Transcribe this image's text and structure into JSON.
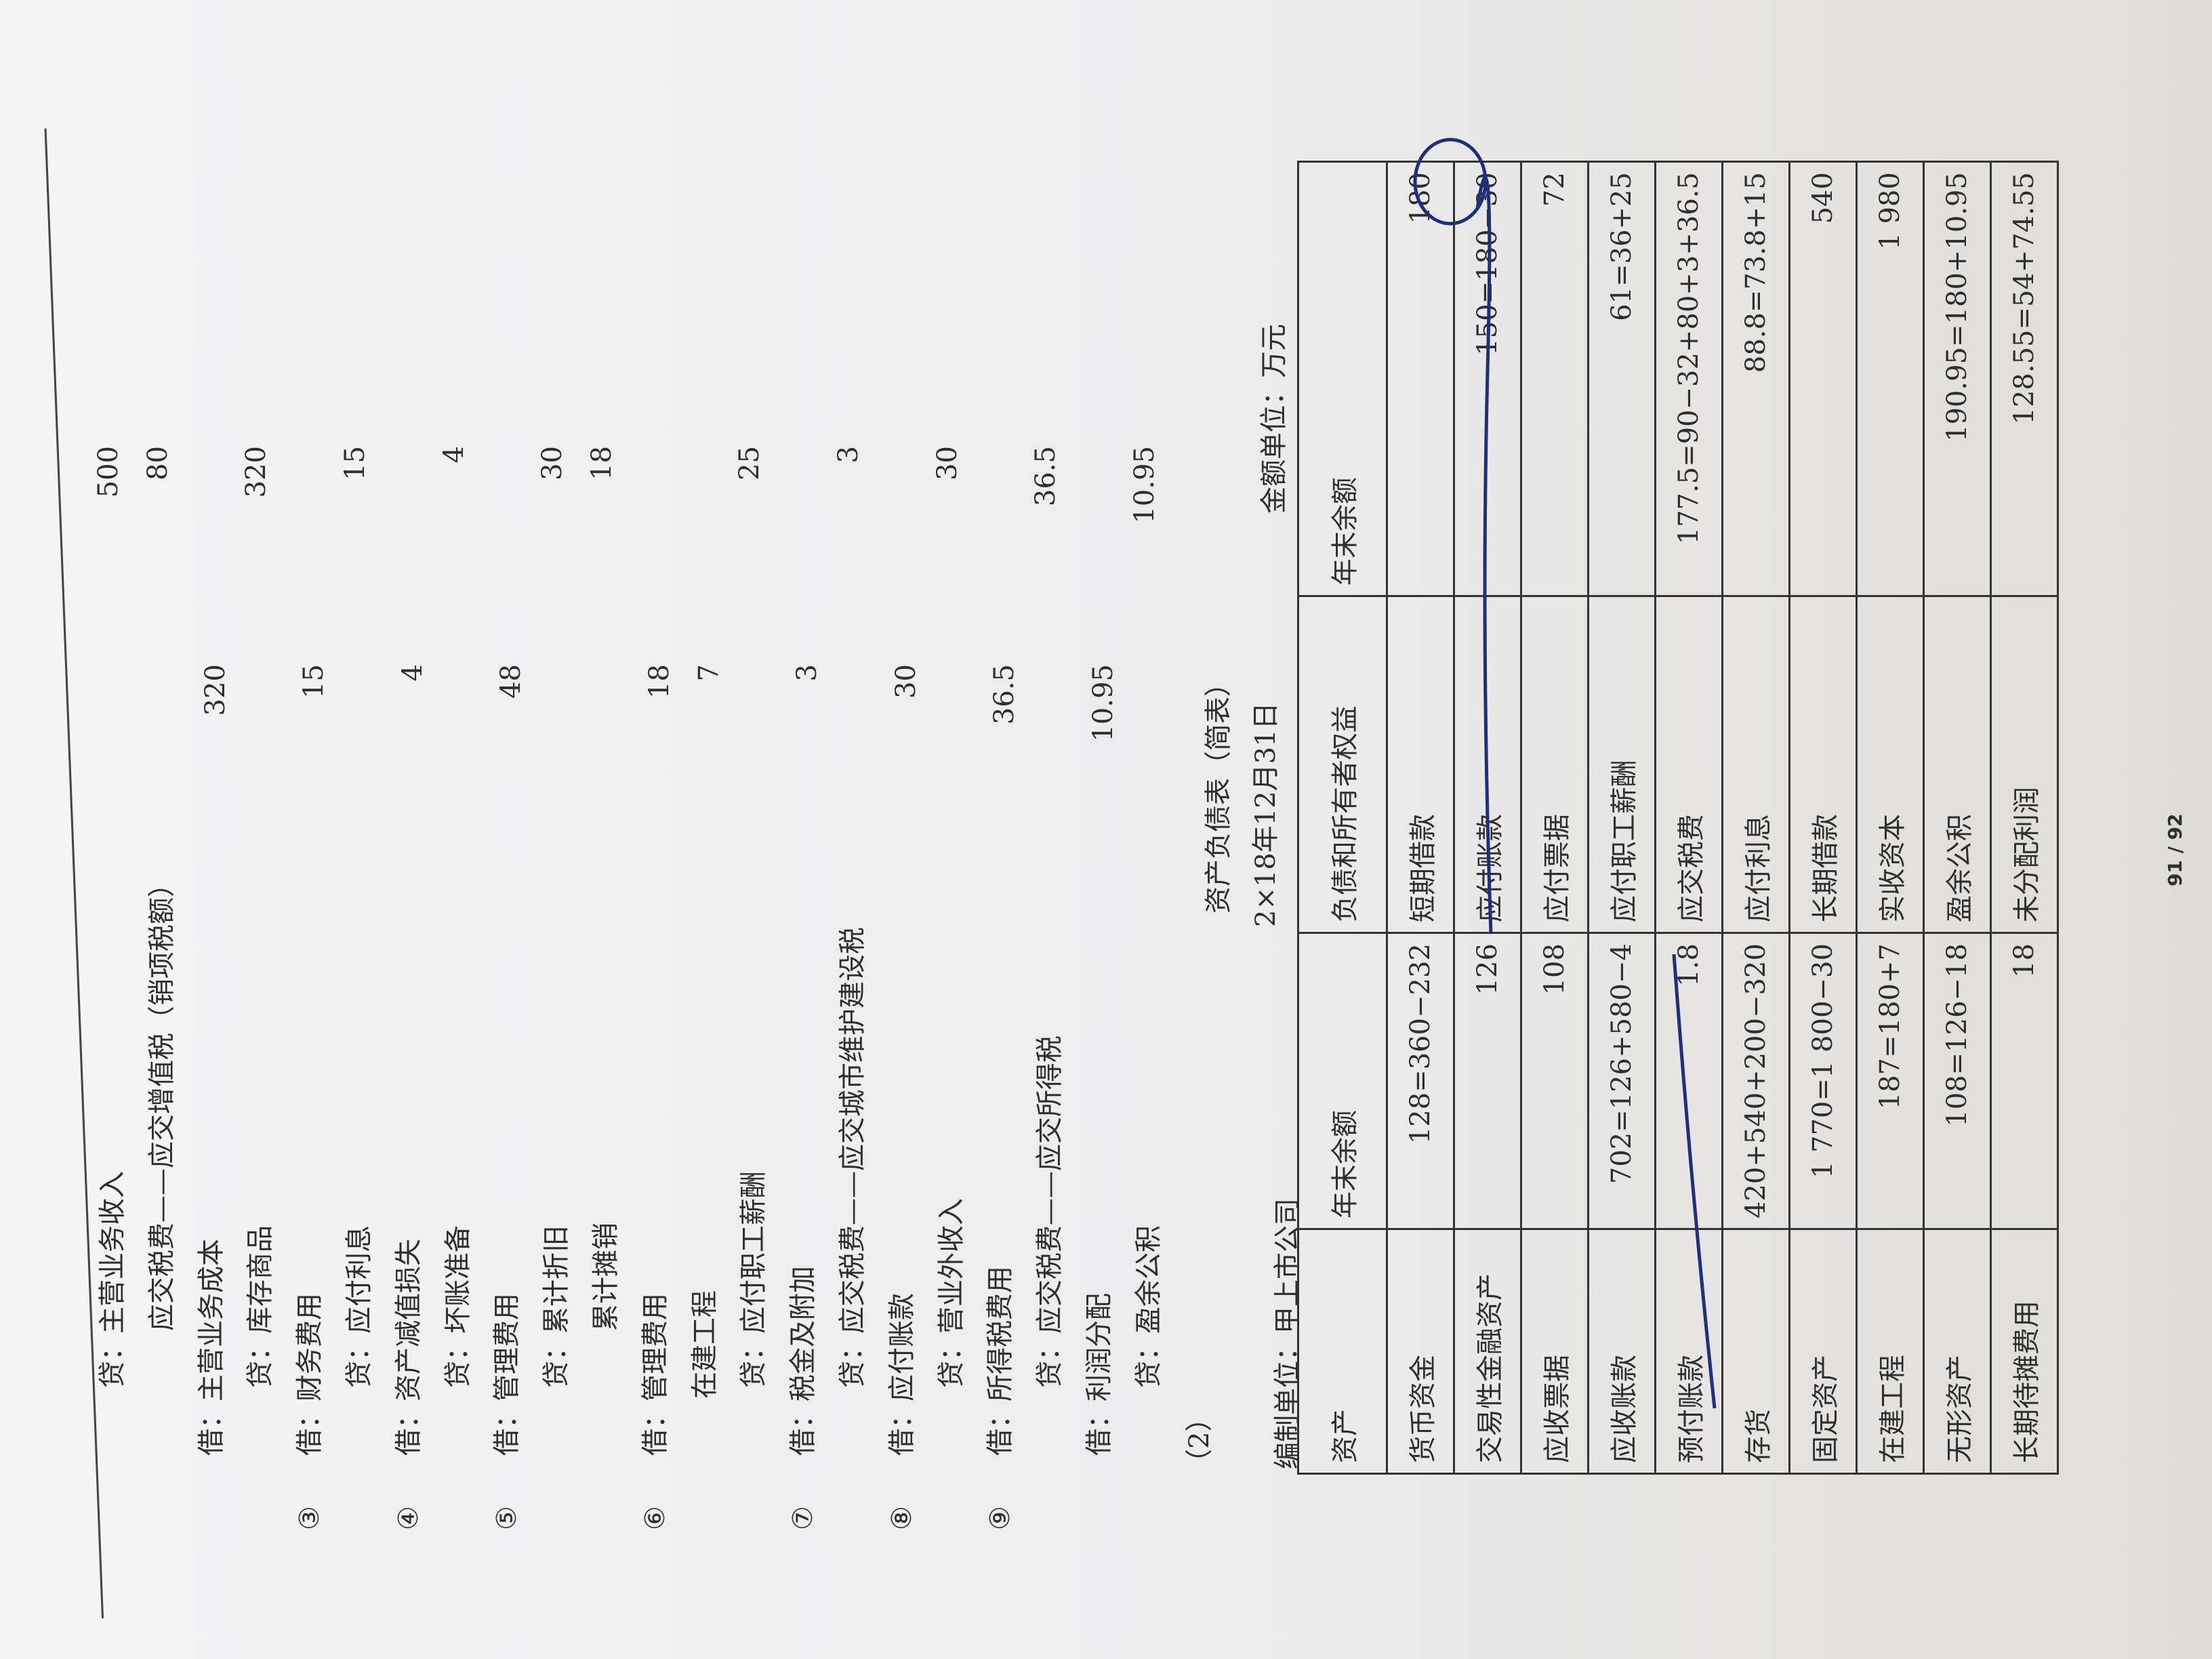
{
  "journal": {
    "entries": [
      {
        "text": "贷：主营业务收入",
        "credit": 500
      },
      {
        "text": "应交税费——应交增值税（销项税额）",
        "credit": 80
      },
      {
        "text": "借：主营业务成本",
        "debit": 320
      },
      {
        "text": "贷：库存商品",
        "credit": 320
      },
      {
        "marker": "③",
        "text": "借：财务费用",
        "debit": 15
      },
      {
        "text": "贷：应付利息",
        "credit": 15
      },
      {
        "marker": "④",
        "text": "借：资产减值损失",
        "debit": 4
      },
      {
        "text": "贷：坏账准备",
        "credit": 4
      },
      {
        "marker": "⑤",
        "text": "借：管理费用",
        "debit": 48
      },
      {
        "text": "贷：累计折旧",
        "credit": 30
      },
      {
        "text": "累计摊销",
        "credit": 18
      },
      {
        "marker": "⑥",
        "text": "借：管理费用",
        "debit": 18
      },
      {
        "text": "在建工程",
        "debit": 7
      },
      {
        "text": "贷：应付职工薪酬",
        "credit": 25
      },
      {
        "marker": "⑦",
        "text": "借：税金及附加",
        "debit": 3
      },
      {
        "text": "贷：应交税费——应交城市维护建设税",
        "credit": 3
      },
      {
        "marker": "⑧",
        "text": "借：应付账款",
        "debit": 30
      },
      {
        "text": "贷：营业外收入",
        "credit": 30
      },
      {
        "marker": "⑨",
        "text": "借：所得税费用",
        "debit": 36.5
      },
      {
        "text": "贷：应交税费——应交所得税",
        "credit": 36.5
      },
      {
        "text": "借：利润分配",
        "debit": 10.95
      },
      {
        "text": "贷：盈余公积",
        "credit": 10.95
      }
    ]
  },
  "section": "（2）",
  "balance_sheet": {
    "title": "资产负债表（简表）",
    "date": "2×18年12月31日",
    "preparer": "编制单位：甲上市公司",
    "unit": "金额单位：万元",
    "header": [
      "资产",
      "年末余额",
      "负债和所有者权益",
      "年末余额"
    ],
    "rows": [
      [
        "货币资金",
        "128=360−232",
        "短期借款",
        "180"
      ],
      [
        "交易性金融资产",
        "126",
        "应付账款",
        "150=180−30"
      ],
      [
        "应收票据",
        "108",
        "应付票据",
        "72"
      ],
      [
        "应收账款",
        "702=126+580−4",
        "应付职工薪酬",
        "61=36+25"
      ],
      [
        "预付账款",
        "1.8",
        "应交税费",
        "177.5=90−32+80+3+36.5"
      ],
      [
        "存货",
        "420+540+200−320",
        "应付利息",
        "88.8=73.8+15"
      ],
      [
        "固定资产",
        "1 770=1 800−30",
        "长期借款",
        "540"
      ],
      [
        "在建工程",
        "187=180+7",
        "实收资本",
        "1 980"
      ],
      [
        "无形资产",
        "108=126−18",
        "盈余公积",
        "190.95=180+10.95"
      ],
      [
        "长期待摊费用",
        "18",
        "未分配利润",
        "128.55=54+74.55"
      ]
    ]
  },
  "footer": {
    "page": "91 / 92"
  }
}
